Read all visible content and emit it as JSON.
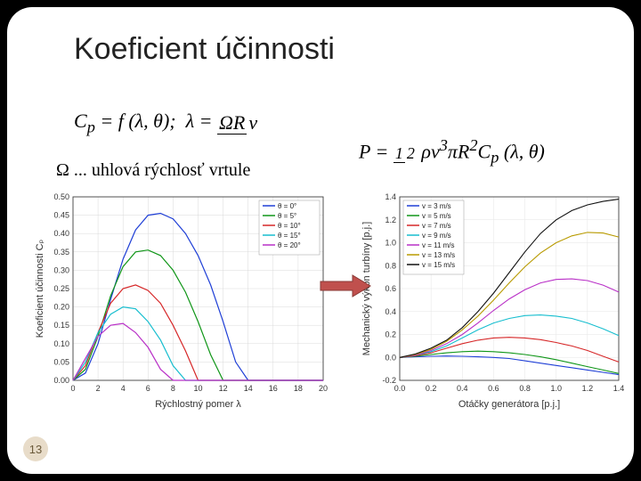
{
  "title": "Koeficient účinnosti",
  "omega_note": "Ω ... uhlová rýchlosť vrtule",
  "formulas": {
    "cp": {
      "lhs": "C",
      "lhs_sub": "p",
      "eq": " = f (λ, θ); ",
      "lambda": "λ = ",
      "num": "ΩR",
      "den": "v"
    },
    "p": {
      "lhs": "P = ",
      "frac_num": "1",
      "frac_den": "2",
      "rest1": " ρv",
      "sup1": "3",
      "rest2": "πR",
      "sup2": "2",
      "rest3": "C",
      "sub": "p",
      "args": " (λ, θ)"
    }
  },
  "page_number": "13",
  "arrow": {
    "fill": "#c0504d",
    "stroke": "#8a3a36"
  },
  "chart_left": {
    "type": "line",
    "title": "",
    "xlabel": "Rýchlostný pomer λ",
    "ylabel": "Koeficient účinnosti Cₚ",
    "xlim": [
      0,
      20
    ],
    "xtick_step": 2,
    "ylim": [
      0,
      0.5
    ],
    "ytick_step": 0.05,
    "plot_bg": "#ffffff",
    "grid_color": "#d9d9d9",
    "axis_color": "#333333",
    "box_border": "#bfbfbf",
    "label_fontsize": 11,
    "tick_fontsize": 9,
    "line_width": 1.2,
    "legend_pos": "top-right",
    "series": [
      {
        "label": "θ = 0°",
        "color": "#1f3fd6",
        "x": [
          0,
          1,
          2,
          3,
          4,
          5,
          6,
          7,
          8,
          9,
          10,
          11,
          12,
          13,
          14,
          15,
          16,
          17,
          18,
          19,
          20
        ],
        "y": [
          0,
          0.02,
          0.1,
          0.22,
          0.33,
          0.41,
          0.45,
          0.455,
          0.44,
          0.4,
          0.34,
          0.26,
          0.16,
          0.05,
          0,
          0,
          0,
          0,
          0,
          0,
          0
        ]
      },
      {
        "label": "θ = 5°",
        "color": "#109618",
        "x": [
          0,
          1,
          2,
          3,
          4,
          5,
          6,
          7,
          8,
          9,
          10,
          11,
          12,
          13,
          14,
          15,
          16,
          17,
          18,
          19,
          20
        ],
        "y": [
          0,
          0.03,
          0.12,
          0.23,
          0.31,
          0.35,
          0.355,
          0.34,
          0.3,
          0.24,
          0.16,
          0.07,
          0,
          0,
          0,
          0,
          0,
          0,
          0,
          0,
          0
        ]
      },
      {
        "label": "θ = 10°",
        "color": "#d62728",
        "x": [
          0,
          1,
          2,
          3,
          4,
          5,
          6,
          7,
          8,
          9,
          10,
          11,
          12,
          13,
          14,
          15,
          16,
          17,
          18,
          19,
          20
        ],
        "y": [
          0,
          0.04,
          0.13,
          0.21,
          0.25,
          0.26,
          0.245,
          0.21,
          0.15,
          0.08,
          0,
          0,
          0,
          0,
          0,
          0,
          0,
          0,
          0,
          0,
          0
        ]
      },
      {
        "label": "θ = 15°",
        "color": "#17becf",
        "x": [
          0,
          1,
          2,
          3,
          4,
          5,
          6,
          7,
          8,
          9,
          10,
          11,
          12,
          13,
          14,
          15,
          16,
          17,
          18,
          19,
          20
        ],
        "y": [
          0,
          0.05,
          0.13,
          0.18,
          0.2,
          0.195,
          0.16,
          0.11,
          0.04,
          0,
          0,
          0,
          0,
          0,
          0,
          0,
          0,
          0,
          0,
          0,
          0
        ]
      },
      {
        "label": "θ = 20°",
        "color": "#b930c7",
        "x": [
          0,
          1,
          2,
          3,
          4,
          5,
          6,
          7,
          8,
          9,
          10,
          11,
          12,
          13,
          14,
          15,
          16,
          17,
          18,
          19,
          20
        ],
        "y": [
          0,
          0.06,
          0.12,
          0.15,
          0.155,
          0.13,
          0.09,
          0.03,
          0,
          0,
          0,
          0,
          0,
          0,
          0,
          0,
          0,
          0,
          0,
          0,
          0
        ]
      }
    ]
  },
  "chart_right": {
    "type": "line",
    "title": "",
    "xlabel": "Otáčky generátora [p.j.]",
    "ylabel": "Mechanický výkon turbíny [p.j.]",
    "xlim": [
      0,
      1.4
    ],
    "xtick_step": 0.2,
    "ylim": [
      -0.2,
      1.4
    ],
    "ytick_step": 0.2,
    "plot_bg": "#ffffff",
    "grid_color": "#e5e5e5",
    "axis_color": "#333333",
    "box_border": "#bfbfbf",
    "label_fontsize": 11,
    "tick_fontsize": 9,
    "line_width": 1.1,
    "legend_pos": "top-left",
    "series": [
      {
        "label": "v = 3 m/s",
        "color": "#1f3fd6",
        "x": [
          0,
          0.1,
          0.2,
          0.3,
          0.4,
          0.5,
          0.6,
          0.7,
          0.8,
          0.9,
          1.0,
          1.1,
          1.2,
          1.3,
          1.4
        ],
        "y": [
          0,
          0.005,
          0.01,
          0.012,
          0.01,
          0.005,
          0,
          -0.01,
          -0.03,
          -0.05,
          -0.07,
          -0.09,
          -0.11,
          -0.13,
          -0.15
        ]
      },
      {
        "label": "v = 5 m/s",
        "color": "#109618",
        "x": [
          0,
          0.1,
          0.2,
          0.3,
          0.4,
          0.5,
          0.6,
          0.7,
          0.8,
          0.9,
          1.0,
          1.1,
          1.2,
          1.3,
          1.4
        ],
        "y": [
          0,
          0.01,
          0.025,
          0.04,
          0.05,
          0.055,
          0.05,
          0.04,
          0.025,
          0.005,
          -0.02,
          -0.05,
          -0.08,
          -0.11,
          -0.14
        ]
      },
      {
        "label": "v = 7 m/s",
        "color": "#d62728",
        "x": [
          0,
          0.1,
          0.2,
          0.3,
          0.4,
          0.5,
          0.6,
          0.7,
          0.8,
          0.9,
          1.0,
          1.1,
          1.2,
          1.3,
          1.4
        ],
        "y": [
          0,
          0.015,
          0.04,
          0.08,
          0.12,
          0.15,
          0.17,
          0.175,
          0.17,
          0.155,
          0.13,
          0.1,
          0.06,
          0.01,
          -0.04
        ]
      },
      {
        "label": "v = 9 m/s",
        "color": "#17becf",
        "x": [
          0,
          0.1,
          0.2,
          0.3,
          0.4,
          0.5,
          0.6,
          0.7,
          0.8,
          0.9,
          1.0,
          1.1,
          1.2,
          1.3,
          1.4
        ],
        "y": [
          0,
          0.02,
          0.05,
          0.1,
          0.17,
          0.24,
          0.3,
          0.34,
          0.365,
          0.37,
          0.36,
          0.34,
          0.3,
          0.25,
          0.19
        ]
      },
      {
        "label": "v = 11 m/s",
        "color": "#b930c7",
        "x": [
          0,
          0.1,
          0.2,
          0.3,
          0.4,
          0.5,
          0.6,
          0.7,
          0.8,
          0.9,
          1.0,
          1.1,
          1.2,
          1.3,
          1.4
        ],
        "y": [
          0,
          0.02,
          0.06,
          0.12,
          0.2,
          0.3,
          0.41,
          0.51,
          0.59,
          0.65,
          0.68,
          0.685,
          0.67,
          0.63,
          0.57
        ]
      },
      {
        "label": "v = 13 m/s",
        "color": "#b89a00",
        "x": [
          0,
          0.1,
          0.2,
          0.3,
          0.4,
          0.5,
          0.6,
          0.7,
          0.8,
          0.9,
          1.0,
          1.1,
          1.2,
          1.3,
          1.4
        ],
        "y": [
          0,
          0.025,
          0.07,
          0.14,
          0.24,
          0.36,
          0.5,
          0.65,
          0.79,
          0.91,
          1.0,
          1.06,
          1.09,
          1.085,
          1.05
        ]
      },
      {
        "label": "v = 15 m/s",
        "color": "#111111",
        "x": [
          0,
          0.1,
          0.2,
          0.3,
          0.4,
          0.5,
          0.6,
          0.7,
          0.8,
          0.9,
          1.0,
          1.1,
          1.2,
          1.3,
          1.4
        ],
        "y": [
          0,
          0.03,
          0.08,
          0.15,
          0.26,
          0.4,
          0.56,
          0.74,
          0.92,
          1.08,
          1.2,
          1.28,
          1.33,
          1.36,
          1.38
        ]
      }
    ]
  }
}
